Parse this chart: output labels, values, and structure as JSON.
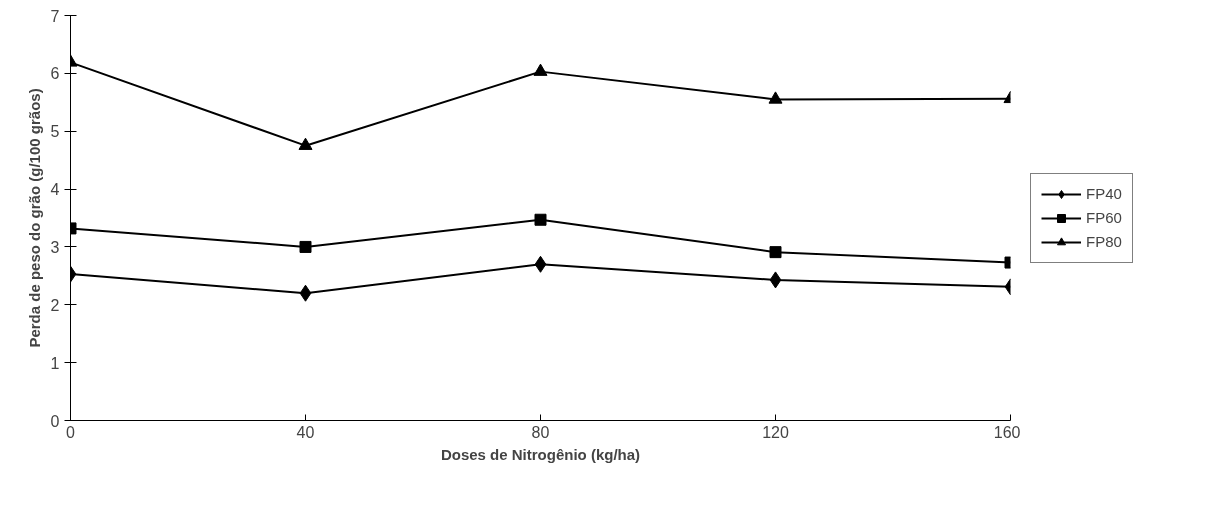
{
  "chart_data": {
    "type": "line",
    "xlabel": "Doses de Nitrogênio (kg/ha)",
    "ylabel": "Perda de peso do grão (g/100 grãos)",
    "x": [
      0,
      40,
      80,
      120,
      160
    ],
    "series": [
      {
        "name": "FP40",
        "color": "#000000",
        "marker": "diamond",
        "values": [
          2.53,
          2.2,
          2.7,
          2.43,
          2.31
        ]
      },
      {
        "name": "FP60",
        "color": "#000000",
        "marker": "square",
        "values": [
          3.32,
          3.0,
          3.47,
          2.91,
          2.73
        ]
      },
      {
        "name": "FP80",
        "color": "#000000",
        "marker": "triangle",
        "values": [
          6.19,
          4.75,
          6.03,
          5.55,
          5.56
        ]
      }
    ],
    "xlim": [
      0,
      160
    ],
    "ylim": [
      0,
      7
    ],
    "xticks": [
      0,
      40,
      80,
      120,
      160
    ],
    "yticks": [
      0,
      1,
      2,
      3,
      4,
      5,
      6,
      7
    ],
    "grid": false,
    "legend": "right",
    "line_style": "solid"
  }
}
